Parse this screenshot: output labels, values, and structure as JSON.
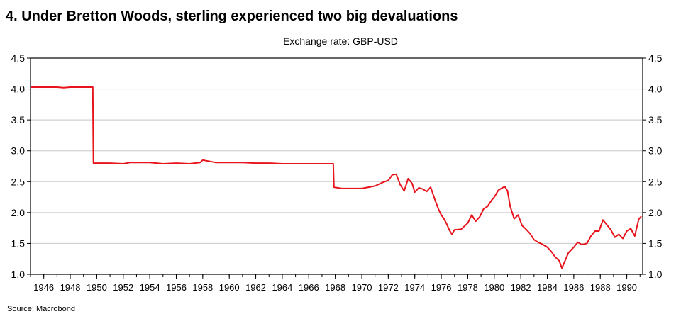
{
  "figure": {
    "title": "4.  Under Bretton Woods, sterling experienced two big devaluations",
    "source": "Source: Macrobond"
  },
  "chart_data": {
    "type": "line",
    "subtitle": "Exchange rate: GBP-USD",
    "xlabel": "",
    "ylabel": "",
    "xlim": [
      1945.0,
      1991.2
    ],
    "ylim": [
      1.0,
      4.5
    ],
    "yticks": [
      "1.0",
      "1.5",
      "2.0",
      "2.5",
      "3.0",
      "3.5",
      "4.0",
      "4.5"
    ],
    "xticks": [
      "1946",
      "1948",
      "1950",
      "1952",
      "1954",
      "1956",
      "1958",
      "1960",
      "1962",
      "1964",
      "1966",
      "1968",
      "1970",
      "1972",
      "1974",
      "1976",
      "1978",
      "1980",
      "1982",
      "1984",
      "1986",
      "1988",
      "1990"
    ],
    "grid": true,
    "line_color": "#e8141c",
    "series": [
      {
        "x": [
          1945.0,
          1947.0,
          1947.5,
          1948.0,
          1949.7,
          1949.75,
          1951.0,
          1952.0,
          1952.5,
          1953.0,
          1954.0,
          1955.0,
          1956.0,
          1957.0,
          1957.8,
          1958.0,
          1959.0,
          1960.0,
          1961.0,
          1962.0,
          1963.0,
          1964.0,
          1965.0,
          1966.0,
          1967.0,
          1967.85,
          1967.9,
          1968.5,
          1969.0,
          1970.0,
          1971.0,
          1971.6,
          1972.0,
          1972.3,
          1972.6,
          1972.9,
          1973.2,
          1973.5,
          1973.8,
          1974.0,
          1974.3,
          1974.6,
          1974.9,
          1975.2,
          1975.5,
          1975.8,
          1976.0,
          1976.2,
          1976.4,
          1976.6,
          1976.8,
          1977.0,
          1977.5,
          1978.0,
          1978.3,
          1978.6,
          1978.9,
          1979.2,
          1979.5,
          1979.8,
          1980.0,
          1980.3,
          1980.6,
          1980.8,
          1981.0,
          1981.2,
          1981.5,
          1981.8,
          1982.1,
          1982.4,
          1982.7,
          1983.0,
          1983.3,
          1983.6,
          1984.0,
          1984.3,
          1984.6,
          1984.9,
          1985.1,
          1985.3,
          1985.6,
          1986.0,
          1986.3,
          1986.6,
          1987.0,
          1987.3,
          1987.6,
          1987.9,
          1988.2,
          1988.5,
          1988.8,
          1989.1,
          1989.4,
          1989.7,
          1990.0,
          1990.3,
          1990.6,
          1990.9,
          1991.1
        ],
        "y": [
          4.03,
          4.03,
          4.02,
          4.03,
          4.03,
          2.8,
          2.8,
          2.79,
          2.81,
          2.81,
          2.81,
          2.79,
          2.8,
          2.79,
          2.81,
          2.85,
          2.81,
          2.81,
          2.81,
          2.8,
          2.8,
          2.79,
          2.79,
          2.79,
          2.79,
          2.79,
          2.41,
          2.39,
          2.39,
          2.39,
          2.43,
          2.49,
          2.52,
          2.61,
          2.62,
          2.45,
          2.35,
          2.55,
          2.47,
          2.33,
          2.4,
          2.38,
          2.34,
          2.41,
          2.22,
          2.05,
          1.96,
          1.9,
          1.82,
          1.72,
          1.65,
          1.72,
          1.73,
          1.83,
          1.96,
          1.86,
          1.93,
          2.06,
          2.1,
          2.2,
          2.25,
          2.36,
          2.4,
          2.42,
          2.35,
          2.1,
          1.9,
          1.96,
          1.79,
          1.73,
          1.66,
          1.56,
          1.52,
          1.49,
          1.44,
          1.37,
          1.28,
          1.22,
          1.1,
          1.2,
          1.35,
          1.44,
          1.52,
          1.48,
          1.5,
          1.62,
          1.7,
          1.7,
          1.88,
          1.8,
          1.72,
          1.6,
          1.65,
          1.58,
          1.7,
          1.74,
          1.62,
          1.89,
          1.94
        ]
      }
    ]
  }
}
